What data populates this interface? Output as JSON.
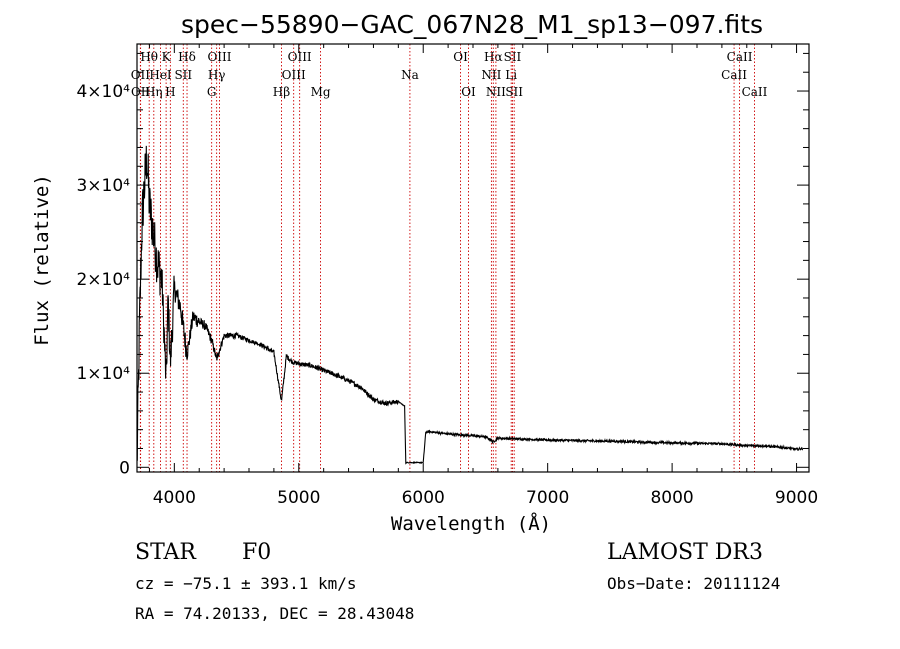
{
  "chart_data": {
    "type": "line",
    "title": "spec−55890−GAC_067N28_M1_sp13−097.fits",
    "xlabel": "Wavelength (Å)",
    "ylabel": "Flux (relative)",
    "xlim": [
      3700,
      9100
    ],
    "ylim": [
      -500,
      45000
    ],
    "x_ticks": [
      {
        "value": 4000,
        "label": "4000"
      },
      {
        "value": 5000,
        "label": "5000"
      },
      {
        "value": 6000,
        "label": "6000"
      },
      {
        "value": 7000,
        "label": "7000"
      },
      {
        "value": 8000,
        "label": "8000"
      },
      {
        "value": 9000,
        "label": "9000"
      }
    ],
    "y_ticks": [
      {
        "value": 0,
        "label": "0"
      },
      {
        "value": 10000,
        "label": "1×10⁴"
      },
      {
        "value": 20000,
        "label": "2×10⁴"
      },
      {
        "value": 30000,
        "label": "3×10⁴"
      },
      {
        "value": 40000,
        "label": "4×10⁴"
      }
    ],
    "line_color": "#cc0000",
    "spectrum_color": "#000000",
    "spectral_lines": [
      {
        "label": "Hθ",
        "wavelength": 3798,
        "row": 0
      },
      {
        "label": "OII",
        "wavelength": 3727,
        "row": 1
      },
      {
        "label": "OII",
        "wavelength": 3729,
        "row": 2
      },
      {
        "label": "HeI",
        "wavelength": 3889,
        "row": 1
      },
      {
        "label": "Hη",
        "wavelength": 3835,
        "row": 2
      },
      {
        "label": "K",
        "wavelength": 3934,
        "row": 0
      },
      {
        "label": "H",
        "wavelength": 3968,
        "row": 2
      },
      {
        "label": "SII",
        "wavelength": 4072,
        "row": 1
      },
      {
        "label": "Hδ",
        "wavelength": 4102,
        "row": 0
      },
      {
        "label": "OIII",
        "wavelength": 4363,
        "row": 0
      },
      {
        "label": "Hγ",
        "wavelength": 4340,
        "row": 1
      },
      {
        "label": "G",
        "wavelength": 4300,
        "row": 2
      },
      {
        "label": "OIII",
        "wavelength": 5007,
        "row": 0
      },
      {
        "label": "OIII",
        "wavelength": 4959,
        "row": 1
      },
      {
        "label": "Hβ",
        "wavelength": 4861,
        "row": 2
      },
      {
        "label": "Mg",
        "wavelength": 5175,
        "row": 2
      },
      {
        "label": "Na",
        "wavelength": 5893,
        "row": 1
      },
      {
        "label": "OI",
        "wavelength": 6300,
        "row": 0
      },
      {
        "label": "OI",
        "wavelength": 6364,
        "row": 2
      },
      {
        "label": "Hα",
        "wavelength": 6563,
        "row": 0
      },
      {
        "label": "NII",
        "wavelength": 6548,
        "row": 1
      },
      {
        "label": "NII",
        "wavelength": 6584,
        "row": 2
      },
      {
        "label": "SII",
        "wavelength": 6717,
        "row": 0
      },
      {
        "label": "Li",
        "wavelength": 6707,
        "row": 1
      },
      {
        "label": "SII",
        "wavelength": 6731,
        "row": 2
      },
      {
        "label": "CaII",
        "wavelength": 8542,
        "row": 0
      },
      {
        "label": "CaII",
        "wavelength": 8498,
        "row": 1
      },
      {
        "label": "CaII",
        "wavelength": 8662,
        "row": 2
      }
    ],
    "spectrum": {
      "anchors_x": [
        3700,
        3720,
        3740,
        3760,
        3780,
        3800,
        3830,
        3860,
        3900,
        3934,
        3950,
        3968,
        4000,
        4050,
        4102,
        4150,
        4200,
        4250,
        4300,
        4340,
        4400,
        4500,
        4600,
        4700,
        4800,
        4861,
        4900,
        4950,
        5000,
        5100,
        5200,
        5300,
        5400,
        5500,
        5600,
        5700,
        5800,
        5850,
        5860,
        5880,
        6000,
        6020,
        6050,
        6100,
        6200,
        6300,
        6400,
        6500,
        6563,
        6600,
        6700,
        6800,
        6900,
        7000,
        7200,
        7400,
        7600,
        7800,
        8000,
        8200,
        8400,
        8500,
        8600,
        8700,
        8800,
        8900,
        9000,
        9050
      ],
      "anchors_y": [
        0,
        15000,
        26000,
        30000,
        33000,
        28000,
        25000,
        22000,
        20000,
        9000,
        18000,
        11000,
        19000,
        17000,
        12000,
        16000,
        15500,
        15000,
        13500,
        11500,
        14000,
        14000,
        13500,
        13000,
        12200,
        7000,
        11800,
        11200,
        11000,
        10800,
        10300,
        9800,
        9200,
        8500,
        7200,
        6800,
        7000,
        6500,
        500,
        500,
        500,
        3700,
        3800,
        3700,
        3550,
        3450,
        3350,
        3250,
        2700,
        3100,
        3050,
        3000,
        2950,
        2900,
        2850,
        2800,
        2750,
        2650,
        2600,
        2550,
        2500,
        2400,
        2300,
        2300,
        2200,
        2100,
        1900,
        2000
      ],
      "noise_amp": [
        3000,
        2600,
        2000,
        1200,
        800,
        500,
        400,
        300,
        250,
        200,
        180
      ]
    }
  },
  "info": {
    "object_class": "STAR",
    "subclass": "F0",
    "cz": "cz = −75.1 ± 393.1 km/s",
    "coords": "RA =  74.20133, DEC =  28.43048",
    "survey": "LAMOST DR3",
    "obs_date": "Obs−Date: 20111124"
  }
}
